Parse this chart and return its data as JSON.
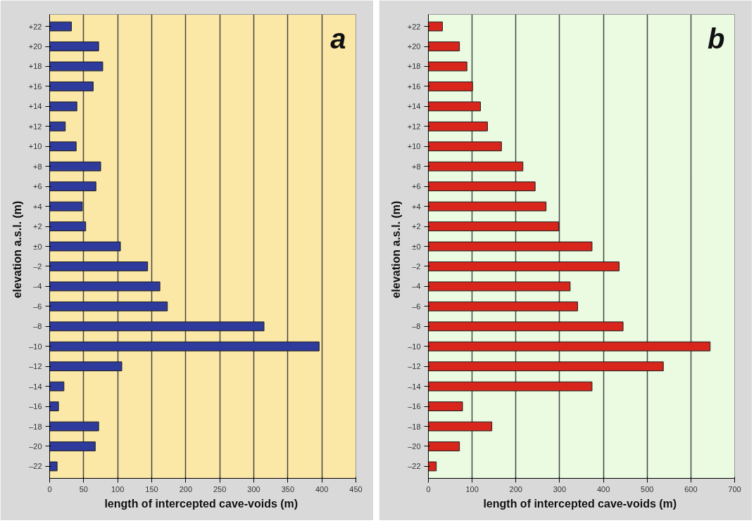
{
  "chart_data": [
    {
      "type": "bar",
      "orientation": "horizontal",
      "categories": [
        "+22",
        "+20",
        "+18",
        "+16",
        "+14",
        "+12",
        "+10",
        "+8",
        "+6",
        "+4",
        "+2",
        "±0",
        "–2",
        "–4",
        "–6",
        "–8",
        "–10",
        "–12",
        "–14",
        "–16",
        "–18",
        "–20",
        "–22"
      ],
      "values": [
        32,
        72,
        78,
        64,
        40,
        23,
        39,
        75,
        68,
        48,
        53,
        104,
        144,
        162,
        173,
        315,
        396,
        106,
        21,
        13,
        72,
        67,
        11
      ],
      "color": "#2e3b9c",
      "xlim": [
        0,
        450
      ],
      "xticks": [
        0,
        50,
        100,
        150,
        200,
        250,
        300,
        350,
        400,
        450
      ],
      "grid": "x",
      "xlabel": "length of intercepted cave-voids  (m)",
      "ylabel": "elevation  a.s.l.  (m)",
      "annotations": [
        "a"
      ]
    },
    {
      "type": "bar",
      "orientation": "horizontal",
      "categories": [
        "+22",
        "+20",
        "+18",
        "+16",
        "+14",
        "+12",
        "+10",
        "+8",
        "+6",
        "+4",
        "+2",
        "±0",
        "–2",
        "–4",
        "–6",
        "–8",
        "–10",
        "–12",
        "–14",
        "–16",
        "–18",
        "–20",
        "–22"
      ],
      "values": [
        32,
        71,
        88,
        101,
        119,
        135,
        167,
        216,
        244,
        269,
        298,
        374,
        436,
        324,
        341,
        445,
        644,
        537,
        374,
        78,
        145,
        71,
        18
      ],
      "color": "#d9261c",
      "xlim": [
        0,
        700
      ],
      "xticks": [
        0,
        100,
        200,
        300,
        400,
        500,
        600,
        700
      ],
      "grid": "x",
      "xlabel": "length of intercepted cave-voids  (m)",
      "ylabel": "elevation  a.s.l.  (m)",
      "annotations": [
        "b"
      ]
    }
  ]
}
